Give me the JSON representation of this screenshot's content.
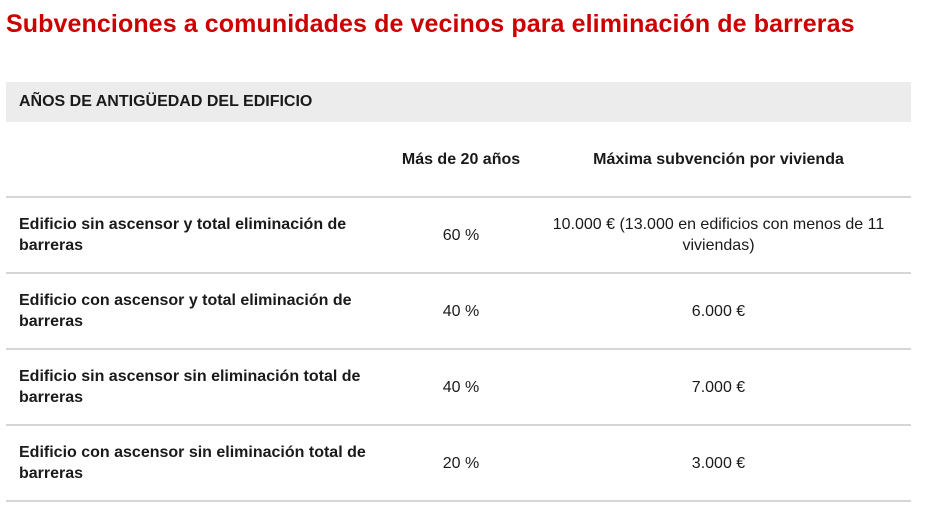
{
  "page": {
    "title": "Subvenciones a comunidades de vecinos para eliminación de barreras"
  },
  "table": {
    "section_header": "AÑOS DE ANTIGÜEDAD DEL EDIFICIO",
    "columns": {
      "row_label": "",
      "pct": "Más de 20 años",
      "max": "Máxima subvención por vivienda"
    },
    "rows": [
      {
        "label": "Edificio sin ascensor y total eliminación de barreras",
        "pct": "60 %",
        "max": "10.000 € (13.000 en edificios con menos de 11 viviendas)"
      },
      {
        "label": "Edificio con ascensor y total eliminación de barreras",
        "pct": "40 %",
        "max": "6.000  €"
      },
      {
        "label": "Edificio sin ascensor sin eliminación total de barreras",
        "pct": "40 %",
        "max": "7.000 €"
      },
      {
        "label": "Edificio con ascensor sin eliminación total de barreras",
        "pct": "20 %",
        "max": "3.000 €"
      }
    ]
  },
  "colors": {
    "title": "#cc0000",
    "header_bg": "#ececec",
    "divider": "#d6d6d6"
  }
}
